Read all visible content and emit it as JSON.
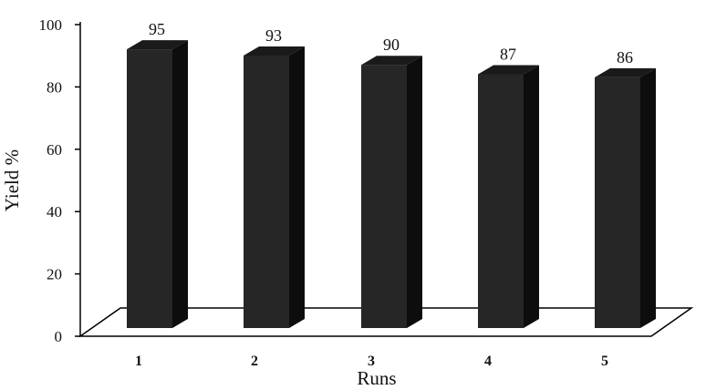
{
  "chart_data": {
    "type": "bar",
    "style": "3d-column",
    "categories": [
      "1",
      "2",
      "3",
      "4",
      "5"
    ],
    "values": [
      95,
      93,
      90,
      87,
      86
    ],
    "data_labels": [
      "95",
      "93",
      "90",
      "87",
      "86"
    ],
    "xlabel": "Runs",
    "ylabel": "Yield %",
    "ylim": [
      0,
      100
    ],
    "yticks": [
      "0",
      "20",
      "40",
      "60",
      "80",
      "100"
    ],
    "grid": false,
    "legend": "none",
    "colors": {
      "bar_front": "#262626",
      "bar_side": "#0d0d0d",
      "bar_top": "#1a1a1a",
      "axis": "#000000"
    }
  }
}
